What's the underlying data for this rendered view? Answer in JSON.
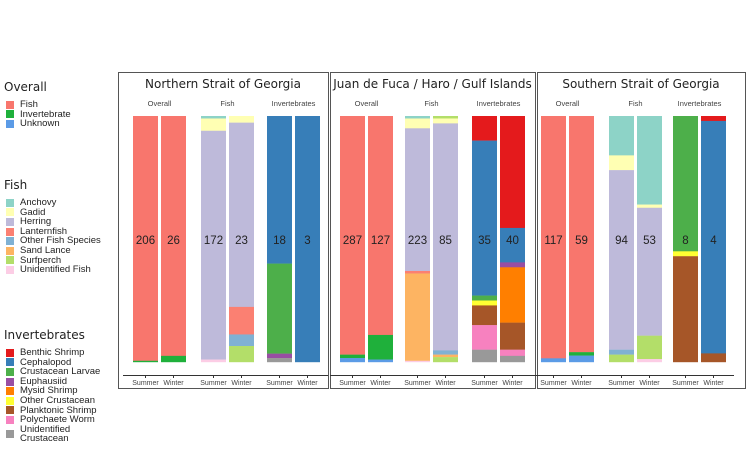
{
  "legend": {
    "overall": {
      "title": "Overall",
      "items": [
        {
          "label": "Fish",
          "color": "#f8766d"
        },
        {
          "label": "Invertebrate",
          "color": "#1fb03b"
        },
        {
          "label": "Unknown",
          "color": "#5b9be6"
        }
      ]
    },
    "fish": {
      "title": "Fish",
      "items": [
        {
          "label": "Anchovy",
          "color": "#8dd3c7"
        },
        {
          "label": "Gadid",
          "color": "#ffffb3"
        },
        {
          "label": "Herring",
          "color": "#bebada"
        },
        {
          "label": "Lanternfish",
          "color": "#fb8072"
        },
        {
          "label": "Other Fish Species",
          "color": "#80b1d3"
        },
        {
          "label": "Sand Lance",
          "color": "#fdb462"
        },
        {
          "label": "Surfperch",
          "color": "#b3de69"
        },
        {
          "label": "Unidentified Fish",
          "color": "#fccde5"
        }
      ]
    },
    "invertebrates": {
      "title": "Invertebrates",
      "items": [
        {
          "label": "Benthic Shrimp",
          "color": "#e41a1c"
        },
        {
          "label": "Cephalopod",
          "color": "#377eb8"
        },
        {
          "label": "Crustacean Larvae",
          "color": "#4daf4a"
        },
        {
          "label": "Euphausiid",
          "color": "#984ea3"
        },
        {
          "label": "Mysid Shrimp",
          "color": "#ff7f00"
        },
        {
          "label": "Other Crustacean",
          "color": "#ffff33"
        },
        {
          "label": "Planktonic Shrimp",
          "color": "#a65628"
        },
        {
          "label": "Polychaete Worm",
          "color": "#f781bf"
        },
        {
          "label": "Unidentified Crustacean",
          "color": "#999999"
        }
      ]
    }
  },
  "chart_data": {
    "type": "bar",
    "stacked": true,
    "normalized": true,
    "unit": "percent of prey",
    "x_categories": [
      "Summer",
      "Winter"
    ],
    "groups": [
      "Overall",
      "Fish",
      "Invertebrates"
    ],
    "panels": [
      {
        "title": "Northern Strait of Georgia",
        "groups": [
          {
            "name": "Overall",
            "bars": [
              {
                "x": "Summer",
                "count": "206",
                "segments": [
                  {
                    "cat": "Fish",
                    "value": 99.5
                  },
                  {
                    "cat": "Invertebrate",
                    "value": 0.5
                  }
                ]
              },
              {
                "x": "Winter",
                "count": "26",
                "segments": [
                  {
                    "cat": "Fish",
                    "value": 97.5
                  },
                  {
                    "cat": "Invertebrate",
                    "value": 2.5
                  }
                ]
              }
            ]
          },
          {
            "name": "Fish",
            "bars": [
              {
                "x": "Summer",
                "count": "172",
                "segments": [
                  {
                    "cat": "Anchovy",
                    "value": 1
                  },
                  {
                    "cat": "Gadid",
                    "value": 5
                  },
                  {
                    "cat": "Herring",
                    "value": 93
                  },
                  {
                    "cat": "Unidentified Fish",
                    "value": 1
                  }
                ]
              },
              {
                "x": "Winter",
                "count": "23",
                "segments": [
                  {
                    "cat": "Gadid",
                    "value": 2.7
                  },
                  {
                    "cat": "Herring",
                    "value": 74.9
                  },
                  {
                    "cat": "Lanternfish",
                    "value": 11.2
                  },
                  {
                    "cat": "Other Fish Species",
                    "value": 4.7
                  },
                  {
                    "cat": "Surfperch",
                    "value": 6.5
                  }
                ]
              }
            ]
          },
          {
            "name": "Invertebrates",
            "bars": [
              {
                "x": "Summer",
                "count": "18",
                "segments": [
                  {
                    "cat": "Cephalopod",
                    "value": 60
                  },
                  {
                    "cat": "Crustacean Larvae",
                    "value": 36.6
                  },
                  {
                    "cat": "Euphausiid",
                    "value": 1.8
                  },
                  {
                    "cat": "Unidentified Crustacean",
                    "value": 1.6
                  }
                ]
              },
              {
                "x": "Winter",
                "count": "3",
                "segments": [
                  {
                    "cat": "Cephalopod",
                    "value": 100
                  }
                ]
              }
            ]
          }
        ]
      },
      {
        "title": "Juan de Fuca  / Haro / Gulf Islands",
        "groups": [
          {
            "name": "Overall",
            "bars": [
              {
                "x": "Summer",
                "count": "287",
                "segments": [
                  {
                    "cat": "Fish",
                    "value": 97
                  },
                  {
                    "cat": "Invertebrate",
                    "value": 1.4
                  },
                  {
                    "cat": "Unknown",
                    "value": 1.6
                  }
                ]
              },
              {
                "x": "Winter",
                "count": "127",
                "segments": [
                  {
                    "cat": "Fish",
                    "value": 89
                  },
                  {
                    "cat": "Invertebrate",
                    "value": 10
                  },
                  {
                    "cat": "Unknown",
                    "value": 1
                  }
                ]
              }
            ]
          },
          {
            "name": "Fish",
            "bars": [
              {
                "x": "Summer",
                "count": "223",
                "segments": [
                  {
                    "cat": "Anchovy",
                    "value": 1
                  },
                  {
                    "cat": "Gadid",
                    "value": 4
                  },
                  {
                    "cat": "Herring",
                    "value": 58
                  },
                  {
                    "cat": "Lanternfish",
                    "value": 1
                  },
                  {
                    "cat": "Sand Lance",
                    "value": 35.5
                  },
                  {
                    "cat": "Unidentified Fish",
                    "value": 0.5
                  }
                ]
              },
              {
                "x": "Winter",
                "count": "85",
                "segments": [
                  {
                    "cat": "Surfperch",
                    "value": 1
                  },
                  {
                    "cat": "Gadid",
                    "value": 2
                  },
                  {
                    "cat": "Herring",
                    "value": 92.3
                  },
                  {
                    "cat": "Other Fish Species",
                    "value": 1.7
                  },
                  {
                    "cat": "Sand Lance",
                    "value": 1
                  },
                  {
                    "cat": "Surfperch",
                    "value": 2
                  }
                ]
              }
            ]
          },
          {
            "name": "Invertebrates",
            "bars": [
              {
                "x": "Summer",
                "count": "35",
                "segments": [
                  {
                    "cat": "Benthic Shrimp",
                    "value": 10
                  },
                  {
                    "cat": "Cephalopod",
                    "value": 63
                  },
                  {
                    "cat": "Crustacean Larvae",
                    "value": 2
                  },
                  {
                    "cat": "Other Crustacean",
                    "value": 2
                  },
                  {
                    "cat": "Planktonic Shrimp",
                    "value": 8
                  },
                  {
                    "cat": "Polychaete Worm",
                    "value": 10
                  },
                  {
                    "cat": "Unidentified Crustacean",
                    "value": 5
                  }
                ]
              },
              {
                "x": "Winter",
                "count": "40",
                "segments": [
                  {
                    "cat": "Benthic Shrimp",
                    "value": 45.5
                  },
                  {
                    "cat": "Cephalopod",
                    "value": 14
                  },
                  {
                    "cat": "Euphausiid",
                    "value": 2
                  },
                  {
                    "cat": "Mysid Shrimp",
                    "value": 22.5
                  },
                  {
                    "cat": "Planktonic Shrimp",
                    "value": 11
                  },
                  {
                    "cat": "Polychaete Worm",
                    "value": 2.5
                  },
                  {
                    "cat": "Unidentified Crustacean",
                    "value": 2.5
                  }
                ]
              }
            ]
          }
        ]
      },
      {
        "title": "Southern Strait of Georgia",
        "groups": [
          {
            "name": "Overall",
            "bars": [
              {
                "x": "Summer",
                "count": "117",
                "segments": [
                  {
                    "cat": "Fish",
                    "value": 98.5
                  },
                  {
                    "cat": "Unknown",
                    "value": 1.5
                  }
                ]
              },
              {
                "x": "Winter",
                "count": "59",
                "segments": [
                  {
                    "cat": "Fish",
                    "value": 96
                  },
                  {
                    "cat": "Invertebrate",
                    "value": 1.4
                  },
                  {
                    "cat": "Unknown",
                    "value": 2.6
                  }
                ]
              }
            ]
          },
          {
            "name": "Fish",
            "bars": [
              {
                "x": "Summer",
                "count": "94",
                "segments": [
                  {
                    "cat": "Anchovy",
                    "value": 16
                  },
                  {
                    "cat": "Gadid",
                    "value": 6
                  },
                  {
                    "cat": "Herring",
                    "value": 73
                  },
                  {
                    "cat": "Other Fish Species",
                    "value": 2
                  },
                  {
                    "cat": "Surfperch",
                    "value": 3
                  }
                ]
              },
              {
                "x": "Winter",
                "count": "53",
                "segments": [
                  {
                    "cat": "Anchovy",
                    "value": 36
                  },
                  {
                    "cat": "Gadid",
                    "value": 1.3
                  },
                  {
                    "cat": "Herring",
                    "value": 52
                  },
                  {
                    "cat": "Surfperch",
                    "value": 9.5
                  },
                  {
                    "cat": "Unidentified Fish",
                    "value": 1.2
                  }
                ]
              }
            ]
          },
          {
            "name": "Invertebrates",
            "bars": [
              {
                "x": "Summer",
                "count": "8",
                "segments": [
                  {
                    "cat": "Crustacean Larvae",
                    "value": 55
                  },
                  {
                    "cat": "Other Crustacean",
                    "value": 2
                  },
                  {
                    "cat": "Planktonic Shrimp",
                    "value": 43
                  }
                ]
              },
              {
                "x": "Winter",
                "count": "4",
                "segments": [
                  {
                    "cat": "Benthic Shrimp",
                    "value": 2
                  },
                  {
                    "cat": "Cephalopod",
                    "value": 94.5
                  },
                  {
                    "cat": "Planktonic Shrimp",
                    "value": 3.5
                  }
                ]
              }
            ]
          }
        ]
      }
    ]
  }
}
